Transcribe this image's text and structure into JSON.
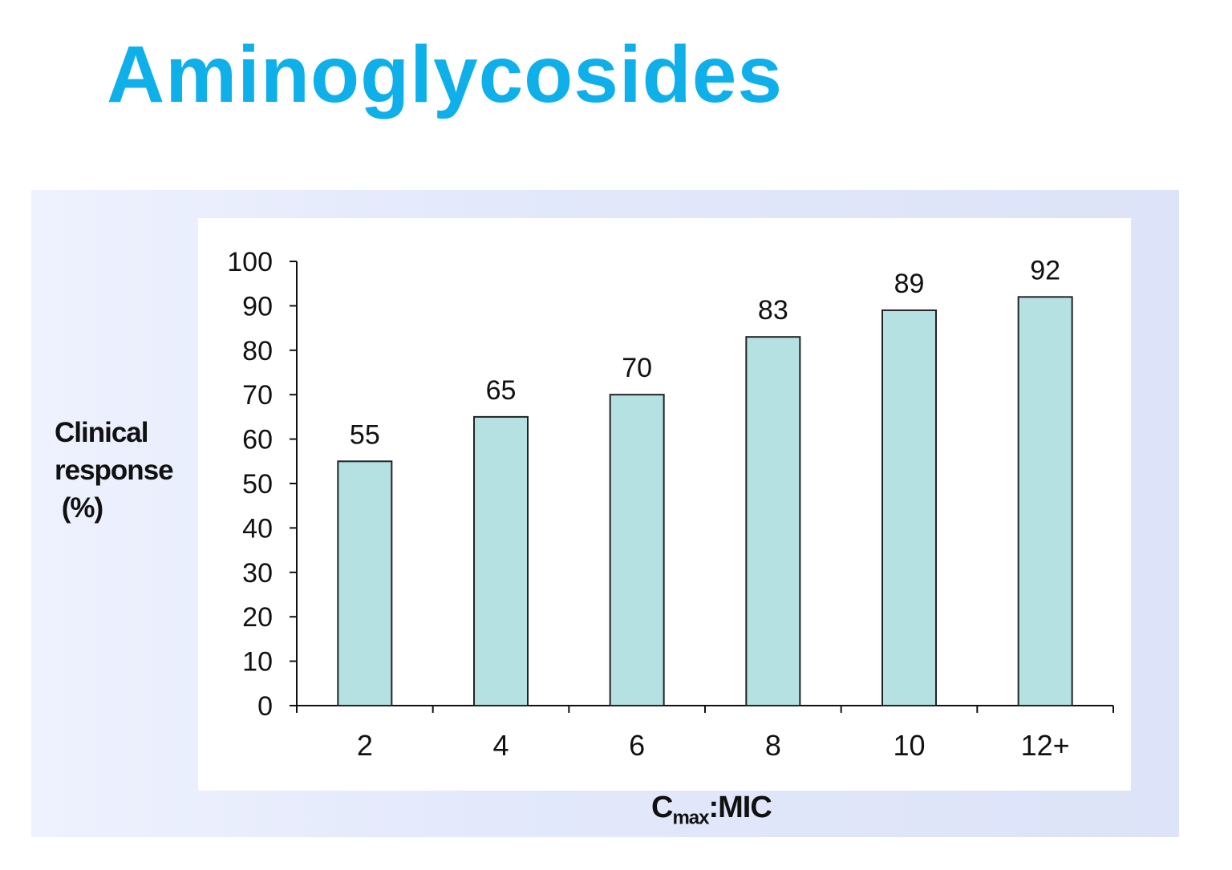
{
  "chart_data": {
    "type": "bar",
    "title": "Aminoglycosides",
    "xlabel_main": "C",
    "xlabel_sub": "max",
    "xlabel_suffix": ":MIC",
    "ylabel_lines": [
      "Clinical",
      "response",
      " (%)"
    ],
    "categories": [
      "2",
      "4",
      "6",
      "8",
      "10",
      "12+"
    ],
    "values": [
      55,
      65,
      70,
      83,
      89,
      92
    ],
    "ylim": [
      0,
      100
    ],
    "yticks": [
      0,
      10,
      20,
      30,
      40,
      50,
      60,
      70,
      80,
      90,
      100
    ],
    "grid": false,
    "bar_color": "#b5e1e3",
    "bar_edge": "#222222",
    "title_color": "#0fb0ea"
  }
}
